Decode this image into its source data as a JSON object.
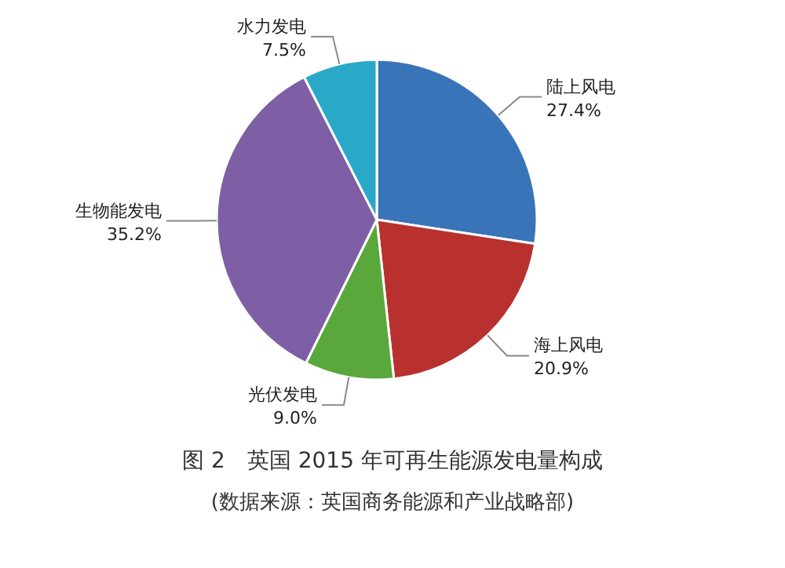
{
  "chart_data": {
    "type": "pie",
    "title": "图 2　英国 2015 年可再生能源发电量构成",
    "annotations": [
      "(数据来源：英国商务能源和产业战略部)"
    ],
    "categories": [
      "陆上风电",
      "海上风电",
      "光伏发电",
      "生物能发电",
      "水力发电"
    ],
    "values": [
      27.4,
      20.9,
      9.0,
      35.2,
      7.5
    ],
    "value_labels": [
      "27.4%",
      "20.9%",
      "9.0%",
      "35.2%",
      "7.5%"
    ],
    "colors": [
      "#3a74b8",
      "#b8312f",
      "#5aa83c",
      "#7e5fa5",
      "#2aa8c8"
    ]
  }
}
